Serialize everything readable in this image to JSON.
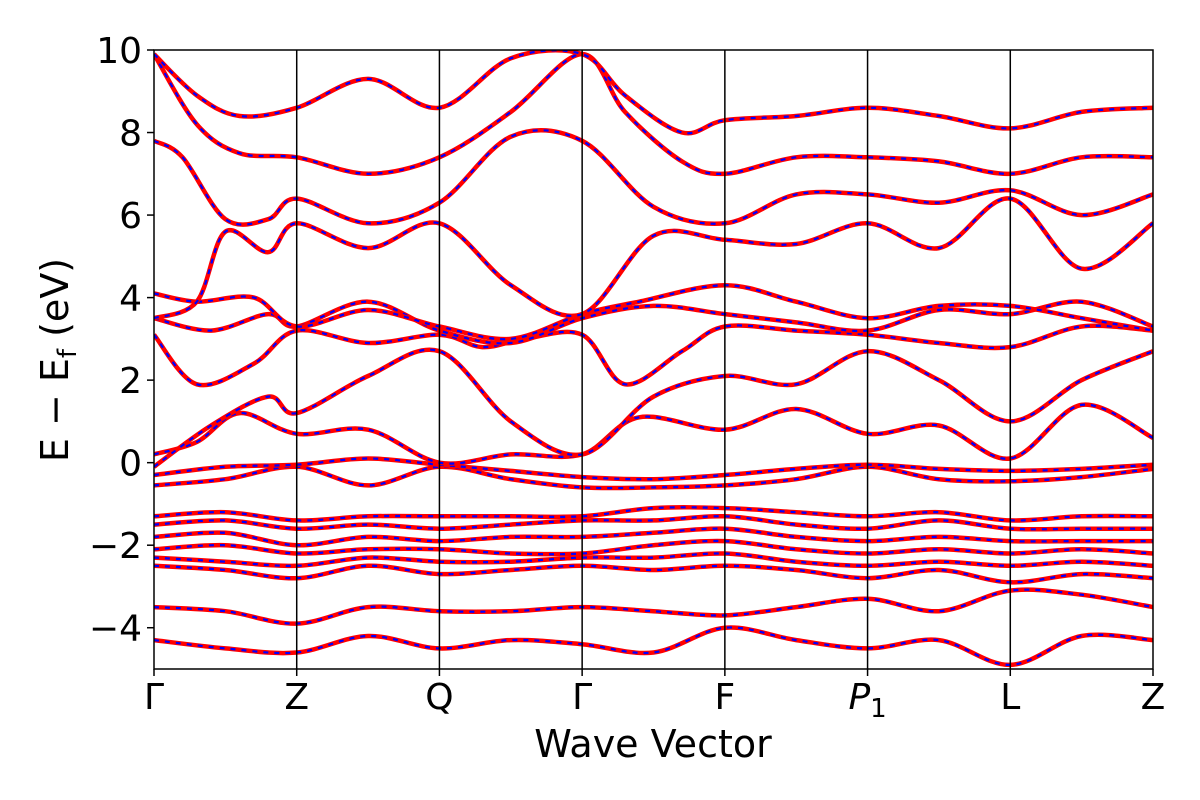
{
  "chart_data": {
    "type": "line",
    "xlabel": "Wave Vector",
    "ylabel": "E − E",
    "ylabel_sub": "f",
    "ylabel_unit": " (eV)",
    "ylim": [
      -5,
      10
    ],
    "yticks": [
      -4,
      -2,
      0,
      2,
      4,
      6,
      8,
      10
    ],
    "ytick_labels": [
      "−4",
      "−2",
      "0",
      "2",
      "4",
      "6",
      "8",
      "10"
    ],
    "x_range": [
      0,
      7
    ],
    "kpoints": [
      {
        "label": "Γ",
        "x": 0
      },
      {
        "label": "Z",
        "x": 1
      },
      {
        "label": "Q",
        "x": 2
      },
      {
        "label": "Γ",
        "x": 3
      },
      {
        "label": "F",
        "x": 4
      },
      {
        "label": "P",
        "sub": "1",
        "italic": true,
        "x": 5
      },
      {
        "label": "L",
        "x": 6
      },
      {
        "label": "Z",
        "x": 7
      }
    ],
    "legend": "none",
    "grid": false,
    "series_styles": [
      {
        "role": "reference",
        "color": "#ff0000",
        "dash": "solid"
      },
      {
        "role": "comparison",
        "color": "#0000ff",
        "dash": "dashed"
      }
    ],
    "bands": [
      [
        [
          0,
          -0.55
        ],
        [
          0.5,
          -0.4
        ],
        [
          1,
          -0.1
        ],
        [
          1.5,
          -0.55
        ],
        [
          2,
          -0.1
        ],
        [
          2.5,
          -0.4
        ],
        [
          3,
          -0.6
        ],
        [
          3.5,
          -0.6
        ],
        [
          4,
          -0.55
        ],
        [
          4.5,
          -0.4
        ],
        [
          5,
          -0.1
        ],
        [
          5.5,
          -0.4
        ],
        [
          6,
          -0.45
        ],
        [
          6.5,
          -0.35
        ],
        [
          7,
          -0.15
        ]
      ],
      [
        [
          0,
          -0.3
        ],
        [
          0.5,
          -0.1
        ],
        [
          1,
          -0.05
        ],
        [
          1.5,
          0.1
        ],
        [
          2,
          -0.05
        ],
        [
          2.5,
          -0.2
        ],
        [
          3,
          -0.35
        ],
        [
          3.5,
          -0.4
        ],
        [
          4,
          -0.3
        ],
        [
          4.5,
          -0.15
        ],
        [
          5,
          -0.05
        ],
        [
          5.5,
          -0.15
        ],
        [
          6,
          -0.2
        ],
        [
          6.5,
          -0.15
        ],
        [
          7,
          -0.05
        ]
      ],
      [
        [
          0,
          0.2
        ],
        [
          0.3,
          0.5
        ],
        [
          0.6,
          1.2
        ],
        [
          1,
          0.7
        ],
        [
          1.5,
          0.8
        ],
        [
          2,
          0.0
        ],
        [
          2.5,
          0.2
        ],
        [
          3,
          0.2
        ],
        [
          3.4,
          1.1
        ],
        [
          4,
          0.8
        ],
        [
          4.5,
          1.3
        ],
        [
          5,
          0.7
        ],
        [
          5.5,
          0.9
        ],
        [
          6,
          0.1
        ],
        [
          6.5,
          1.4
        ],
        [
          7,
          0.6
        ]
      ],
      [
        [
          0,
          -0.1
        ],
        [
          0.4,
          0.9
        ],
        [
          0.8,
          1.6
        ],
        [
          1,
          1.2
        ],
        [
          1.5,
          2.1
        ],
        [
          2,
          2.7
        ],
        [
          2.5,
          1.0
        ],
        [
          3,
          0.2
        ],
        [
          3.5,
          1.6
        ],
        [
          4,
          2.1
        ],
        [
          4.5,
          1.9
        ],
        [
          5,
          2.7
        ],
        [
          5.5,
          2.0
        ],
        [
          6,
          1.0
        ],
        [
          6.5,
          2.0
        ],
        [
          7,
          2.7
        ]
      ],
      [
        [
          0,
          3.1
        ],
        [
          0.3,
          1.9
        ],
        [
          0.7,
          2.4
        ],
        [
          1,
          3.2
        ],
        [
          1.5,
          2.9
        ],
        [
          2,
          3.1
        ],
        [
          2.3,
          2.8
        ],
        [
          2.6,
          3.0
        ],
        [
          3,
          3.1
        ],
        [
          3.3,
          1.9
        ],
        [
          3.7,
          2.7
        ],
        [
          4,
          3.3
        ],
        [
          4.5,
          3.2
        ],
        [
          5,
          3.1
        ],
        [
          5.5,
          2.9
        ],
        [
          6,
          2.8
        ],
        [
          6.5,
          3.3
        ],
        [
          7,
          3.2
        ]
      ],
      [
        [
          0,
          3.5
        ],
        [
          0.4,
          3.2
        ],
        [
          0.8,
          3.6
        ],
        [
          1,
          3.3
        ],
        [
          1.5,
          3.9
        ],
        [
          2,
          3.2
        ],
        [
          2.5,
          2.9
        ],
        [
          3,
          3.5
        ],
        [
          3.5,
          3.8
        ],
        [
          4,
          3.6
        ],
        [
          4.5,
          3.4
        ],
        [
          5,
          3.2
        ],
        [
          5.5,
          3.7
        ],
        [
          6,
          3.6
        ],
        [
          6.5,
          3.9
        ],
        [
          7,
          3.3
        ]
      ],
      [
        [
          0,
          4.1
        ],
        [
          0.3,
          3.9
        ],
        [
          0.7,
          4.0
        ],
        [
          1,
          3.3
        ],
        [
          1.5,
          3.7
        ],
        [
          2,
          3.3
        ],
        [
          2.5,
          3.0
        ],
        [
          3,
          3.6
        ],
        [
          3.4,
          3.9
        ],
        [
          4,
          4.3
        ],
        [
          4.5,
          3.9
        ],
        [
          5,
          3.5
        ],
        [
          5.5,
          3.8
        ],
        [
          6,
          3.8
        ],
        [
          6.5,
          3.5
        ],
        [
          7,
          3.2
        ]
      ],
      [
        [
          0,
          3.5
        ],
        [
          0.3,
          3.9
        ],
        [
          0.5,
          5.6
        ],
        [
          0.8,
          5.1
        ],
        [
          1,
          5.8
        ],
        [
          1.5,
          5.2
        ],
        [
          2,
          5.8
        ],
        [
          2.5,
          4.3
        ],
        [
          3,
          3.6
        ],
        [
          3.5,
          5.5
        ],
        [
          4,
          5.4
        ],
        [
          4.5,
          5.3
        ],
        [
          5,
          5.8
        ],
        [
          5.5,
          5.2
        ],
        [
          6,
          6.4
        ],
        [
          6.5,
          4.7
        ],
        [
          7,
          5.8
        ]
      ],
      [
        [
          0,
          7.8
        ],
        [
          0.2,
          7.4
        ],
        [
          0.5,
          5.9
        ],
        [
          0.8,
          5.9
        ],
        [
          1,
          6.4
        ],
        [
          1.5,
          5.8
        ],
        [
          2,
          6.3
        ],
        [
          2.5,
          7.9
        ],
        [
          3,
          7.8
        ],
        [
          3.5,
          6.2
        ],
        [
          4,
          5.8
        ],
        [
          4.5,
          6.5
        ],
        [
          5,
          6.5
        ],
        [
          5.5,
          6.3
        ],
        [
          6,
          6.6
        ],
        [
          6.5,
          6.0
        ],
        [
          7,
          6.5
        ]
      ],
      [
        [
          0,
          9.9
        ],
        [
          0.3,
          8.2
        ],
        [
          0.6,
          7.5
        ],
        [
          1,
          7.4
        ],
        [
          1.5,
          7.0
        ],
        [
          2,
          7.4
        ],
        [
          2.5,
          8.5
        ],
        [
          3,
          9.9
        ],
        [
          3.3,
          8.5
        ],
        [
          3.7,
          7.3
        ],
        [
          4,
          7.0
        ],
        [
          4.5,
          7.4
        ],
        [
          5,
          7.4
        ],
        [
          5.5,
          7.3
        ],
        [
          6,
          7.0
        ],
        [
          6.5,
          7.4
        ],
        [
          7,
          7.4
        ]
      ],
      [
        [
          0,
          9.9
        ],
        [
          0.3,
          8.9
        ],
        [
          0.6,
          8.4
        ],
        [
          1,
          8.6
        ],
        [
          1.5,
          9.3
        ],
        [
          2,
          8.6
        ],
        [
          2.5,
          9.8
        ],
        [
          3,
          9.9
        ],
        [
          3.3,
          8.9
        ],
        [
          3.7,
          8.0
        ],
        [
          4,
          8.3
        ],
        [
          4.5,
          8.4
        ],
        [
          5,
          8.6
        ],
        [
          5.5,
          8.4
        ],
        [
          6,
          8.1
        ],
        [
          6.5,
          8.5
        ],
        [
          7,
          8.6
        ]
      ],
      [
        [
          0,
          -1.3
        ],
        [
          0.5,
          -1.2
        ],
        [
          1,
          -1.4
        ],
        [
          1.5,
          -1.3
        ],
        [
          2,
          -1.3
        ],
        [
          2.5,
          -1.3
        ],
        [
          3,
          -1.3
        ],
        [
          3.5,
          -1.1
        ],
        [
          4,
          -1.1
        ],
        [
          4.5,
          -1.2
        ],
        [
          5,
          -1.3
        ],
        [
          5.5,
          -1.2
        ],
        [
          6,
          -1.4
        ],
        [
          6.5,
          -1.3
        ],
        [
          7,
          -1.3
        ]
      ],
      [
        [
          0,
          -1.5
        ],
        [
          0.5,
          -1.4
        ],
        [
          1,
          -1.6
        ],
        [
          1.5,
          -1.5
        ],
        [
          2,
          -1.6
        ],
        [
          2.5,
          -1.5
        ],
        [
          3,
          -1.4
        ],
        [
          3.5,
          -1.4
        ],
        [
          4,
          -1.3
        ],
        [
          4.5,
          -1.5
        ],
        [
          5,
          -1.6
        ],
        [
          5.5,
          -1.4
        ],
        [
          6,
          -1.6
        ],
        [
          6.5,
          -1.6
        ],
        [
          7,
          -1.6
        ]
      ],
      [
        [
          0,
          -1.8
        ],
        [
          0.5,
          -1.7
        ],
        [
          1,
          -2.0
        ],
        [
          1.5,
          -1.8
        ],
        [
          2,
          -1.9
        ],
        [
          2.5,
          -1.8
        ],
        [
          3,
          -1.8
        ],
        [
          3.5,
          -1.7
        ],
        [
          4,
          -1.6
        ],
        [
          4.5,
          -1.8
        ],
        [
          5,
          -1.9
        ],
        [
          5.5,
          -1.8
        ],
        [
          6,
          -1.9
        ],
        [
          6.5,
          -1.9
        ],
        [
          7,
          -1.9
        ]
      ],
      [
        [
          0,
          -2.1
        ],
        [
          0.5,
          -2.0
        ],
        [
          1,
          -2.2
        ],
        [
          1.5,
          -2.1
        ],
        [
          2,
          -2.1
        ],
        [
          2.5,
          -2.2
        ],
        [
          3,
          -2.2
        ],
        [
          3.5,
          -2.0
        ],
        [
          4,
          -1.9
        ],
        [
          4.5,
          -2.1
        ],
        [
          5,
          -2.2
        ],
        [
          5.5,
          -2.1
        ],
        [
          6,
          -2.2
        ],
        [
          6.5,
          -2.1
        ],
        [
          7,
          -2.2
        ]
      ],
      [
        [
          0,
          -2.3
        ],
        [
          0.5,
          -2.4
        ],
        [
          1,
          -2.5
        ],
        [
          1.5,
          -2.3
        ],
        [
          2,
          -2.4
        ],
        [
          2.5,
          -2.4
        ],
        [
          3,
          -2.3
        ],
        [
          3.5,
          -2.3
        ],
        [
          4,
          -2.2
        ],
        [
          4.5,
          -2.4
        ],
        [
          5,
          -2.5
        ],
        [
          5.5,
          -2.4
        ],
        [
          6,
          -2.5
        ],
        [
          6.5,
          -2.4
        ],
        [
          7,
          -2.5
        ]
      ],
      [
        [
          0,
          -2.5
        ],
        [
          0.5,
          -2.6
        ],
        [
          1,
          -2.8
        ],
        [
          1.5,
          -2.5
        ],
        [
          2,
          -2.7
        ],
        [
          2.5,
          -2.6
        ],
        [
          3,
          -2.5
        ],
        [
          3.5,
          -2.6
        ],
        [
          4,
          -2.5
        ],
        [
          4.5,
          -2.6
        ],
        [
          5,
          -2.8
        ],
        [
          5.5,
          -2.6
        ],
        [
          6,
          -2.9
        ],
        [
          6.5,
          -2.7
        ],
        [
          7,
          -2.8
        ]
      ],
      [
        [
          0,
          -3.5
        ],
        [
          0.5,
          -3.6
        ],
        [
          1,
          -3.9
        ],
        [
          1.5,
          -3.5
        ],
        [
          2,
          -3.6
        ],
        [
          2.5,
          -3.6
        ],
        [
          3,
          -3.5
        ],
        [
          3.5,
          -3.6
        ],
        [
          4,
          -3.7
        ],
        [
          4.5,
          -3.5
        ],
        [
          5,
          -3.3
        ],
        [
          5.5,
          -3.6
        ],
        [
          6,
          -3.1
        ],
        [
          6.5,
          -3.2
        ],
        [
          7,
          -3.5
        ]
      ],
      [
        [
          0,
          -4.3
        ],
        [
          0.5,
          -4.5
        ],
        [
          1,
          -4.6
        ],
        [
          1.5,
          -4.2
        ],
        [
          2,
          -4.5
        ],
        [
          2.5,
          -4.3
        ],
        [
          3,
          -4.4
        ],
        [
          3.5,
          -4.6
        ],
        [
          4,
          -4.0
        ],
        [
          4.5,
          -4.3
        ],
        [
          5,
          -4.5
        ],
        [
          5.5,
          -4.3
        ],
        [
          6,
          -4.9
        ],
        [
          6.5,
          -4.2
        ],
        [
          7,
          -4.3
        ]
      ]
    ]
  }
}
